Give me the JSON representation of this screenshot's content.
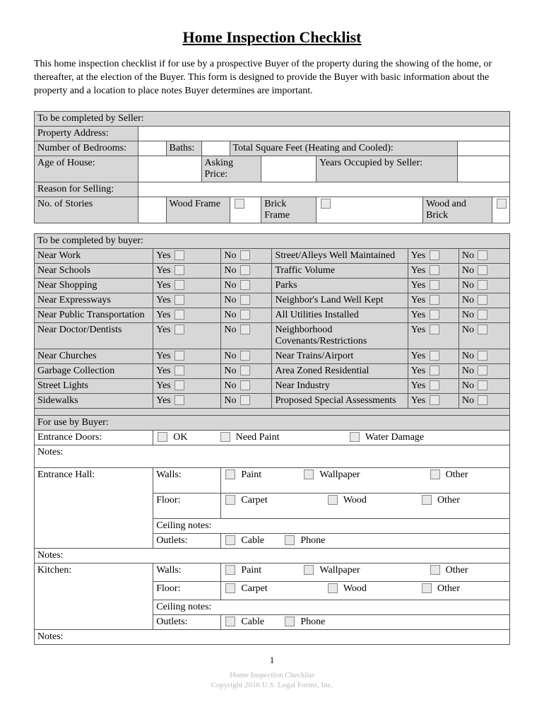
{
  "title": "Home Inspection Checklist",
  "intro": "This home inspection checklist if for use by a prospective Buyer of the property during the showing of the home, or thereafter, at the election of the Buyer.  This form is designed to provide the Buyer with basic information about the property and a location to place notes Buyer determines are important.",
  "seller": {
    "heading": "To be completed by Seller:",
    "propertyAddress": "Property Address:",
    "bedrooms": "Number of Bedrooms:",
    "baths": "Baths:",
    "sqft": "Total Square Feet (Heating and Cooled):",
    "age": "Age of House:",
    "asking": "Asking Price:",
    "occupied": "Years Occupied by Seller:",
    "reason": "Reason for Selling:",
    "stories": "No. of Stories",
    "wood": "Wood Frame",
    "brick": "Brick Frame",
    "woodbrick": "Wood and Brick"
  },
  "buyer": {
    "heading": "To be completed by buyer:",
    "yes": "Yes",
    "no": "No",
    "left": [
      "Near Work",
      "Near Schools",
      "Near Shopping",
      "Near Expressways",
      "Near Public Transportation",
      "Near Doctor/Dentists",
      "Near Churches",
      "Garbage Collection",
      "Street Lights",
      "Sidewalks"
    ],
    "right": [
      "Street/Alleys Well Maintained",
      "Traffic Volume",
      "Parks",
      "Neighbor's Land Well Kept",
      "All Utilities Installed",
      "Neighborhood Covenants/Restrictions",
      "Near Trains/Airport",
      "Area Zoned Residential",
      "Near Industry",
      "Proposed Special Assessments"
    ],
    "foruse": "For use by Buyer:"
  },
  "doors": {
    "label": "Entrance Doors:",
    "ok": "OK",
    "paint": "Need Paint",
    "water": "Water Damage"
  },
  "notes": "Notes:",
  "hall": {
    "label": "Entrance Hall:",
    "walls": "Walls:",
    "floor": "Floor:",
    "ceiling": "Ceiling notes:",
    "outlets": "Outlets:",
    "paint": "Paint",
    "wallpaper": "Wallpaper",
    "other": "Other",
    "carpet": "Carpet",
    "wood": "Wood",
    "cable": "Cable",
    "phone": "Phone"
  },
  "kitchen": {
    "label": "Kitchen:"
  },
  "page": "1",
  "footer1": "Home Inspection Checklist",
  "footer2": "Copyright 2016 U.S. Legal Forms, Inc."
}
